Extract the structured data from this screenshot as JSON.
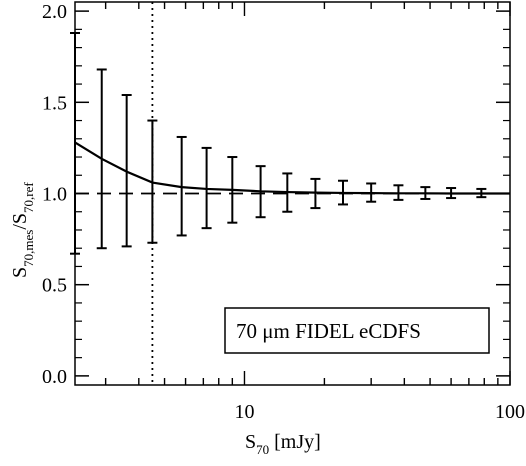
{
  "chart_data": {
    "type": "line",
    "title": "",
    "xlabel": {
      "base": "S",
      "sub": "70",
      "suffix": " [mJy]"
    },
    "ylabel": {
      "num_base": "S",
      "num_sub": "70,mes",
      "den_base": "S",
      "den_sub": "70,ref"
    },
    "xscale": "log",
    "xlim": [
      2.3,
      100
    ],
    "ylim": [
      -0.05,
      2.05
    ],
    "x_ticks": [
      10,
      100
    ],
    "x_tick_labels": [
      "10",
      "100"
    ],
    "y_ticks": [
      0.0,
      0.5,
      1.0,
      1.5,
      2.0
    ],
    "y_tick_labels": [
      "0.0",
      "0.5",
      "1.0",
      "1.5",
      "2.0"
    ],
    "reference_line": {
      "y": 1.0,
      "style": "dashed"
    },
    "vertical_line": {
      "x": 4.5,
      "style": "dotted"
    },
    "legend": {
      "text": "70 μm FIDEL eCDFS",
      "position": "bottom-right"
    },
    "series": [
      {
        "x": [
          2.3,
          2.9,
          3.6,
          4.5,
          5.8,
          7.2,
          9.0,
          11.5,
          14.5,
          18.5,
          23.5,
          30,
          38,
          48,
          60,
          78,
          100
        ],
        "y": [
          1.28,
          1.19,
          1.12,
          1.06,
          1.035,
          1.025,
          1.02,
          1.012,
          1.008,
          1.005,
          1.003,
          1.002,
          1.001,
          1.001,
          1.0,
          1.0,
          1.0
        ]
      }
    ],
    "errorbars": {
      "x": [
        2.3,
        2.9,
        3.6,
        4.5,
        5.8,
        7.2,
        9.0,
        11.5,
        14.5,
        18.5,
        23.5,
        30,
        38,
        48,
        60,
        78
      ],
      "low": [
        0.67,
        0.7,
        0.71,
        0.73,
        0.77,
        0.81,
        0.84,
        0.87,
        0.9,
        0.92,
        0.94,
        0.955,
        0.965,
        0.97,
        0.975,
        0.98
      ],
      "high": [
        1.88,
        1.68,
        1.54,
        1.4,
        1.31,
        1.25,
        1.2,
        1.15,
        1.11,
        1.08,
        1.07,
        1.055,
        1.045,
        1.035,
        1.03,
        1.025
      ]
    }
  },
  "colors": {
    "line": "#000000",
    "background": "#ffffff"
  }
}
